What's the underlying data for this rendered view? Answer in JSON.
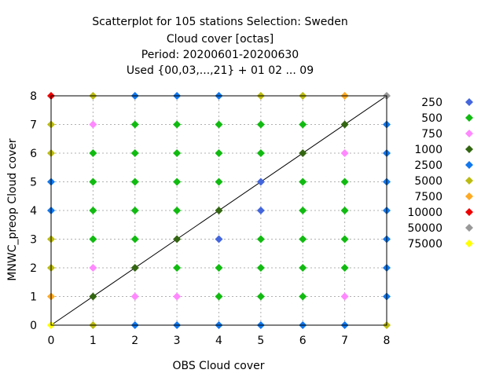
{
  "chart_data": {
    "type": "scatter",
    "title_lines": [
      "Scatterplot for  105 stations Selection: Sweden",
      "Cloud cover [octas]",
      "Period: 20200601-20200630",
      "Used {00,03,...,21} + 01 02 ... 09"
    ],
    "xlabel": "OBS Cloud cover",
    "ylabel": "MNWC_preop Cloud cover",
    "xlim": [
      0,
      8
    ],
    "ylim": [
      0,
      8
    ],
    "xticks": [
      "0",
      "1",
      "2",
      "3",
      "4",
      "5",
      "6",
      "7",
      "8"
    ],
    "yticks": [
      "0",
      "1",
      "2",
      "3",
      "4",
      "5",
      "6",
      "7",
      "8"
    ],
    "grid": true,
    "diagonal": true,
    "legend_position": "right",
    "legend": [
      {
        "label": "250",
        "color": "#4466dd"
      },
      {
        "label": "500",
        "color": "#11bb11"
      },
      {
        "label": "750",
        "color": "#ff88ff"
      },
      {
        "label": "1000",
        "color": "#336611"
      },
      {
        "label": "2500",
        "color": "#1177ee"
      },
      {
        "label": "5000",
        "color": "#bbbb11"
      },
      {
        "label": "7500",
        "color": "#ffaa22"
      },
      {
        "label": "10000",
        "color": "#ee0000"
      },
      {
        "label": "50000",
        "color": "#999999"
      },
      {
        "label": "75000",
        "color": "#ffff00"
      }
    ],
    "points": [
      {
        "x": 0,
        "y": 8,
        "c": "10000"
      },
      {
        "x": 1,
        "y": 8,
        "c": "5000"
      },
      {
        "x": 2,
        "y": 8,
        "c": "2500"
      },
      {
        "x": 3,
        "y": 8,
        "c": "2500"
      },
      {
        "x": 4,
        "y": 8,
        "c": "2500"
      },
      {
        "x": 5,
        "y": 8,
        "c": "5000"
      },
      {
        "x": 6,
        "y": 8,
        "c": "5000"
      },
      {
        "x": 7,
        "y": 8,
        "c": "7500"
      },
      {
        "x": 8,
        "y": 8,
        "c": "50000"
      },
      {
        "x": 0,
        "y": 7,
        "c": "5000"
      },
      {
        "x": 1,
        "y": 7,
        "c": "750"
      },
      {
        "x": 2,
        "y": 7,
        "c": "500"
      },
      {
        "x": 3,
        "y": 7,
        "c": "500"
      },
      {
        "x": 4,
        "y": 7,
        "c": "500"
      },
      {
        "x": 5,
        "y": 7,
        "c": "500"
      },
      {
        "x": 6,
        "y": 7,
        "c": "500"
      },
      {
        "x": 7,
        "y": 7,
        "c": "1000"
      },
      {
        "x": 8,
        "y": 7,
        "c": "2500"
      },
      {
        "x": 0,
        "y": 6,
        "c": "5000"
      },
      {
        "x": 1,
        "y": 6,
        "c": "500"
      },
      {
        "x": 2,
        "y": 6,
        "c": "500"
      },
      {
        "x": 3,
        "y": 6,
        "c": "500"
      },
      {
        "x": 4,
        "y": 6,
        "c": "500"
      },
      {
        "x": 5,
        "y": 6,
        "c": "500"
      },
      {
        "x": 6,
        "y": 6,
        "c": "1000"
      },
      {
        "x": 7,
        "y": 6,
        "c": "750"
      },
      {
        "x": 8,
        "y": 6,
        "c": "2500"
      },
      {
        "x": 0,
        "y": 5,
        "c": "2500"
      },
      {
        "x": 1,
        "y": 5,
        "c": "500"
      },
      {
        "x": 2,
        "y": 5,
        "c": "500"
      },
      {
        "x": 3,
        "y": 5,
        "c": "500"
      },
      {
        "x": 4,
        "y": 5,
        "c": "500"
      },
      {
        "x": 5,
        "y": 5,
        "c": "250"
      },
      {
        "x": 6,
        "y": 5,
        "c": "500"
      },
      {
        "x": 7,
        "y": 5,
        "c": "500"
      },
      {
        "x": 8,
        "y": 5,
        "c": "2500"
      },
      {
        "x": 0,
        "y": 4,
        "c": "2500"
      },
      {
        "x": 1,
        "y": 4,
        "c": "500"
      },
      {
        "x": 2,
        "y": 4,
        "c": "500"
      },
      {
        "x": 3,
        "y": 4,
        "c": "500"
      },
      {
        "x": 4,
        "y": 4,
        "c": "1000"
      },
      {
        "x": 5,
        "y": 4,
        "c": "250"
      },
      {
        "x": 6,
        "y": 4,
        "c": "500"
      },
      {
        "x": 7,
        "y": 4,
        "c": "500"
      },
      {
        "x": 8,
        "y": 4,
        "c": "2500"
      },
      {
        "x": 0,
        "y": 3,
        "c": "5000"
      },
      {
        "x": 1,
        "y": 3,
        "c": "500"
      },
      {
        "x": 2,
        "y": 3,
        "c": "500"
      },
      {
        "x": 3,
        "y": 3,
        "c": "1000"
      },
      {
        "x": 4,
        "y": 3,
        "c": "250"
      },
      {
        "x": 5,
        "y": 3,
        "c": "500"
      },
      {
        "x": 6,
        "y": 3,
        "c": "500"
      },
      {
        "x": 7,
        "y": 3,
        "c": "500"
      },
      {
        "x": 8,
        "y": 3,
        "c": "2500"
      },
      {
        "x": 0,
        "y": 2,
        "c": "5000"
      },
      {
        "x": 1,
        "y": 2,
        "c": "750"
      },
      {
        "x": 2,
        "y": 2,
        "c": "1000"
      },
      {
        "x": 3,
        "y": 2,
        "c": "500"
      },
      {
        "x": 4,
        "y": 2,
        "c": "500"
      },
      {
        "x": 5,
        "y": 2,
        "c": "500"
      },
      {
        "x": 6,
        "y": 2,
        "c": "500"
      },
      {
        "x": 7,
        "y": 2,
        "c": "500"
      },
      {
        "x": 8,
        "y": 2,
        "c": "2500"
      },
      {
        "x": 0,
        "y": 1,
        "c": "7500"
      },
      {
        "x": 1,
        "y": 1,
        "c": "1000"
      },
      {
        "x": 2,
        "y": 1,
        "c": "750"
      },
      {
        "x": 3,
        "y": 1,
        "c": "750"
      },
      {
        "x": 4,
        "y": 1,
        "c": "500"
      },
      {
        "x": 5,
        "y": 1,
        "c": "500"
      },
      {
        "x": 6,
        "y": 1,
        "c": "500"
      },
      {
        "x": 7,
        "y": 1,
        "c": "750"
      },
      {
        "x": 8,
        "y": 1,
        "c": "2500"
      },
      {
        "x": 0,
        "y": 0,
        "c": "75000"
      },
      {
        "x": 1,
        "y": 0,
        "c": "5000"
      },
      {
        "x": 2,
        "y": 0,
        "c": "2500"
      },
      {
        "x": 3,
        "y": 0,
        "c": "2500"
      },
      {
        "x": 4,
        "y": 0,
        "c": "2500"
      },
      {
        "x": 5,
        "y": 0,
        "c": "2500"
      },
      {
        "x": 6,
        "y": 0,
        "c": "2500"
      },
      {
        "x": 7,
        "y": 0,
        "c": "2500"
      },
      {
        "x": 8,
        "y": 0,
        "c": "5000"
      }
    ]
  }
}
